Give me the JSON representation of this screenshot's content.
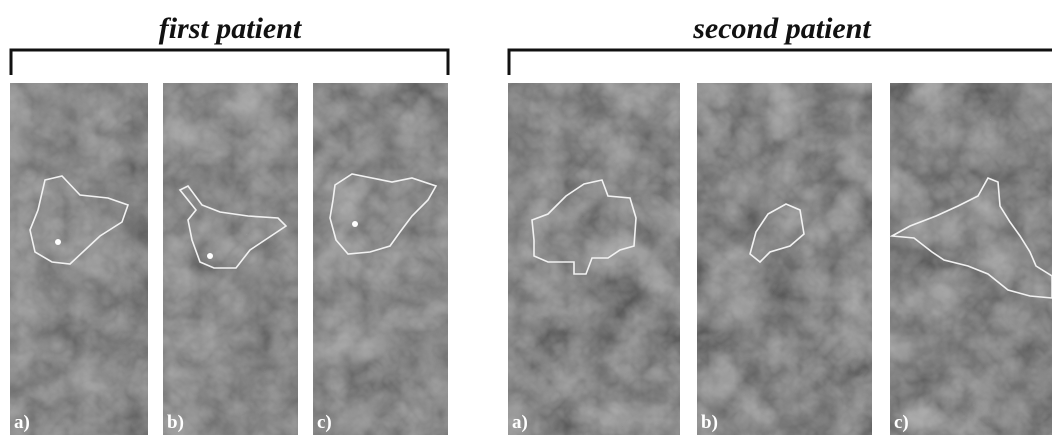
{
  "groups": [
    {
      "title": "first patient",
      "panels": [
        "a)",
        "b)",
        "c)"
      ]
    },
    {
      "title": "second patient",
      "panels": [
        "a)",
        "b)",
        "c)"
      ]
    }
  ]
}
